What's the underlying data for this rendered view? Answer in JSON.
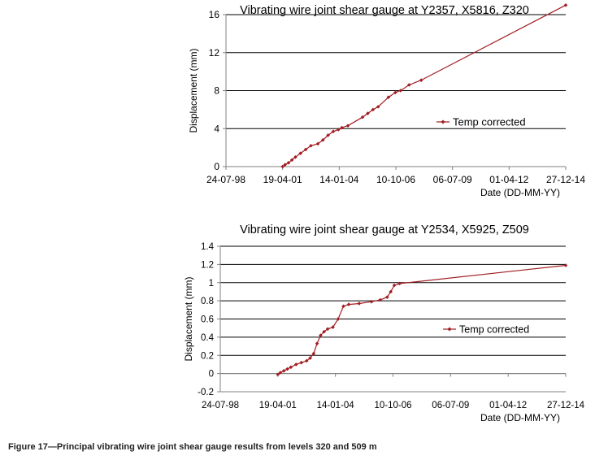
{
  "caption": "Figure 17—Principal vibrating wire joint shear gauge results from levels 320 and 509 m",
  "colors": {
    "series": "#a11d22",
    "grid": "#000000",
    "axis": "#808080"
  },
  "chart_data": [
    {
      "type": "line",
      "title": "Vibrating wire joint shear gauge at Y2357, X5816, Z320",
      "xlabel": "Date (DD-MM-YY)",
      "ylabel": "Displacement (mm)",
      "x_ticks": [
        "24-07-98",
        "19-04-01",
        "14-01-04",
        "10-10-06",
        "06-07-09",
        "01-04-12",
        "27-12-14"
      ],
      "y_ticks": [
        0,
        4,
        8,
        12,
        16
      ],
      "ylim": [
        0,
        16
      ],
      "xlim": [
        "24-07-98",
        "27-12-14"
      ],
      "grid": "horizontal",
      "legend_position": "right",
      "series": [
        {
          "name": "Temp corrected",
          "marker": "diamond",
          "points": [
            [
              "19-04-01",
              0.0
            ],
            [
              "01-06-01",
              0.2
            ],
            [
              "01-08-01",
              0.4
            ],
            [
              "01-10-01",
              0.7
            ],
            [
              "01-12-01",
              1.0
            ],
            [
              "01-03-02",
              1.4
            ],
            [
              "01-06-02",
              1.8
            ],
            [
              "01-09-02",
              2.2
            ],
            [
              "01-01-03",
              2.4
            ],
            [
              "01-04-03",
              2.8
            ],
            [
              "01-07-03",
              3.3
            ],
            [
              "01-10-03",
              3.7
            ],
            [
              "01-01-04",
              3.9
            ],
            [
              "01-03-04",
              4.1
            ],
            [
              "15-06-04",
              4.3
            ],
            [
              "01-03-05",
              5.2
            ],
            [
              "01-06-05",
              5.6
            ],
            [
              "01-09-05",
              6.0
            ],
            [
              "01-12-05",
              6.3
            ],
            [
              "01-06-06",
              7.3
            ],
            [
              "01-10-06",
              7.8
            ],
            [
              "01-01-07",
              8.0
            ],
            [
              "01-06-07",
              8.6
            ],
            [
              "01-01-08",
              9.1
            ],
            [
              "27-12-14",
              17.0
            ]
          ]
        }
      ]
    },
    {
      "type": "line",
      "title": "Vibrating wire joint shear gauge at Y2534, X5925, Z509",
      "xlabel": "Date (DD-MM-YY)",
      "ylabel": "Displacement (mm)",
      "x_ticks": [
        "24-07-98",
        "19-04-01",
        "14-01-04",
        "10-10-06",
        "06-07-09",
        "01-04-12",
        "27-12-14"
      ],
      "y_ticks": [
        -0.2,
        0,
        0.2,
        0.4,
        0.6,
        0.8,
        1,
        1.2,
        1.4
      ],
      "ylim": [
        -0.2,
        1.4
      ],
      "xlim": [
        "24-07-98",
        "27-12-14"
      ],
      "grid": "horizontal",
      "legend_position": "right",
      "series": [
        {
          "name": "Temp corrected",
          "marker": "diamond",
          "points": [
            [
              "19-04-01",
              -0.01
            ],
            [
              "01-06-01",
              0.01
            ],
            [
              "01-08-01",
              0.03
            ],
            [
              "01-10-01",
              0.05
            ],
            [
              "01-12-01",
              0.07
            ],
            [
              "01-03-02",
              0.1
            ],
            [
              "01-06-02",
              0.12
            ],
            [
              "01-09-02",
              0.14
            ],
            [
              "01-11-02",
              0.17
            ],
            [
              "01-01-03",
              0.22
            ],
            [
              "01-03-03",
              0.33
            ],
            [
              "01-05-03",
              0.42
            ],
            [
              "01-07-03",
              0.46
            ],
            [
              "01-09-03",
              0.49
            ],
            [
              "01-12-03",
              0.51
            ],
            [
              "01-03-04",
              0.6
            ],
            [
              "01-06-04",
              0.74
            ],
            [
              "01-09-04",
              0.76
            ],
            [
              "01-03-05",
              0.77
            ],
            [
              "01-10-05",
              0.79
            ],
            [
              "01-03-06",
              0.81
            ],
            [
              "01-07-06",
              0.84
            ],
            [
              "01-09-06",
              0.9
            ],
            [
              "01-11-06",
              0.97
            ],
            [
              "01-02-07",
              0.99
            ],
            [
              "27-12-14",
              1.19
            ]
          ]
        }
      ]
    }
  ]
}
